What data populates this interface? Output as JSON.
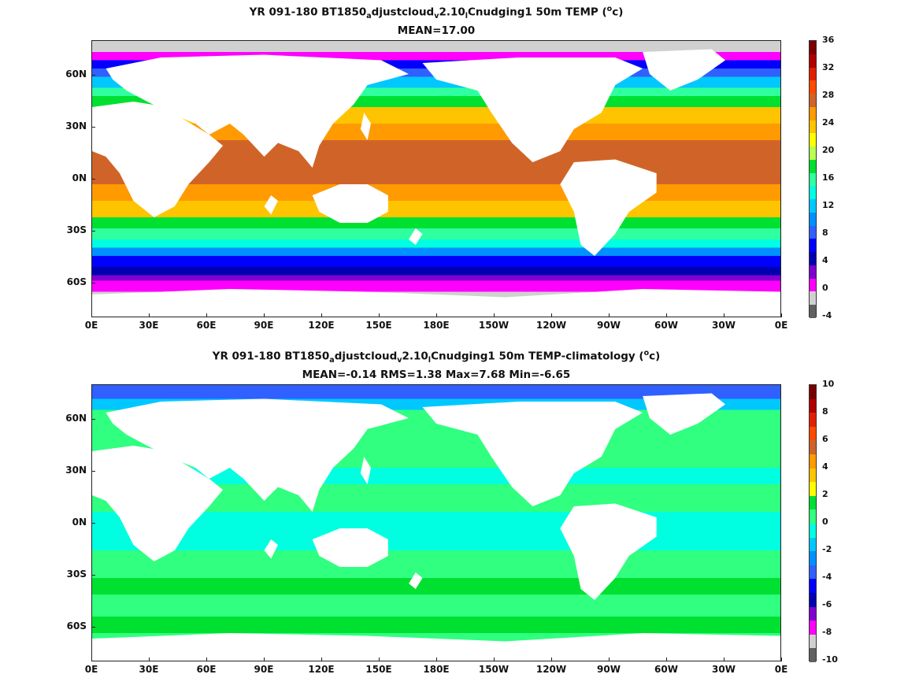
{
  "panels": [
    {
      "title_parts": [
        "YR 091-180 BT1850",
        "a",
        "djustcloud",
        "v",
        "2.10",
        "l",
        "Cnudging1 50m TEMP (",
        "o",
        "c)"
      ],
      "subtitle": "MEAN=17.00",
      "colorbar": {
        "ticks": [
          "36",
          "32",
          "28",
          "24",
          "20",
          "16",
          "12",
          "8",
          "4",
          "0",
          "-4"
        ],
        "colors": [
          "#7a0000",
          "#b00000",
          "#e02000",
          "#ff4a00",
          "#d06428",
          "#ff9a00",
          "#ffc400",
          "#ffff00",
          "#b8ff50",
          "#00e030",
          "#30ffa0",
          "#00ffe0",
          "#00c8ff",
          "#0090ff",
          "#3060ff",
          "#0000ff",
          "#0000b0",
          "#8000d0",
          "#ff00ff",
          "#d0d0d0",
          "#606060"
        ]
      },
      "map": {
        "bands": [
          {
            "color": "#d0d0d0",
            "from": 0.0,
            "to": 0.04
          },
          {
            "color": "#ff00ff",
            "from": 0.04,
            "to": 0.07
          },
          {
            "color": "#0000ff",
            "from": 0.07,
            "to": 0.1
          },
          {
            "color": "#3060ff",
            "from": 0.1,
            "to": 0.13
          },
          {
            "color": "#00c8ff",
            "from": 0.13,
            "to": 0.17
          },
          {
            "color": "#30ffa0",
            "from": 0.17,
            "to": 0.2
          },
          {
            "color": "#00e030",
            "from": 0.2,
            "to": 0.24
          },
          {
            "color": "#ffc400",
            "from": 0.24,
            "to": 0.3
          },
          {
            "color": "#ff9a00",
            "from": 0.3,
            "to": 0.36
          },
          {
            "color": "#d06428",
            "from": 0.36,
            "to": 0.52
          },
          {
            "color": "#ff9a00",
            "from": 0.52,
            "to": 0.58
          },
          {
            "color": "#ffc400",
            "from": 0.58,
            "to": 0.64
          },
          {
            "color": "#00e030",
            "from": 0.64,
            "to": 0.68
          },
          {
            "color": "#30ffa0",
            "from": 0.68,
            "to": 0.72
          },
          {
            "color": "#00ffe0",
            "from": 0.72,
            "to": 0.75
          },
          {
            "color": "#0090ff",
            "from": 0.75,
            "to": 0.78
          },
          {
            "color": "#0000ff",
            "from": 0.78,
            "to": 0.82
          },
          {
            "color": "#0000b0",
            "from": 0.82,
            "to": 0.85
          },
          {
            "color": "#8000d0",
            "from": 0.85,
            "to": 0.87
          },
          {
            "color": "#ff00ff",
            "from": 0.87,
            "to": 0.91
          },
          {
            "color": "#d0d0d0",
            "from": 0.91,
            "to": 1.0
          }
        ]
      }
    },
    {
      "title_parts": [
        "YR 091-180 BT1850",
        "a",
        "djustcloud",
        "v",
        "2.10",
        "l",
        "Cnudging1 50m TEMP-climatology (",
        "o",
        "c)"
      ],
      "subtitle": "MEAN=-0.14   RMS=1.38   Max=7.68   Min=-6.65",
      "colorbar": {
        "ticks": [
          "10",
          "8",
          "6",
          "4",
          "2",
          "0",
          "-2",
          "-4",
          "-6",
          "-8",
          "-10"
        ],
        "colors": [
          "#7a0000",
          "#b00000",
          "#e02000",
          "#ff4a00",
          "#d06428",
          "#ff9a00",
          "#ffc400",
          "#ffff00",
          "#00e030",
          "#30ff80",
          "#00ffe0",
          "#00c8ff",
          "#0090ff",
          "#3060ff",
          "#0000ff",
          "#0000b0",
          "#8000d0",
          "#ff00ff",
          "#d0d0d0",
          "#606060"
        ]
      },
      "map": {
        "bands": [
          {
            "color": "#3060ff",
            "from": 0.0,
            "to": 0.05
          },
          {
            "color": "#00c8ff",
            "from": 0.05,
            "to": 0.09
          },
          {
            "color": "#30ff80",
            "from": 0.09,
            "to": 0.3
          },
          {
            "color": "#00ffe0",
            "from": 0.3,
            "to": 0.36
          },
          {
            "color": "#30ff80",
            "from": 0.36,
            "to": 0.46
          },
          {
            "color": "#00ffe0",
            "from": 0.46,
            "to": 0.6
          },
          {
            "color": "#30ff80",
            "from": 0.6,
            "to": 0.7
          },
          {
            "color": "#00e030",
            "from": 0.7,
            "to": 0.76
          },
          {
            "color": "#30ff80",
            "from": 0.76,
            "to": 0.84
          },
          {
            "color": "#00e030",
            "from": 0.84,
            "to": 0.9
          },
          {
            "color": "#30ff80",
            "from": 0.9,
            "to": 1.0
          }
        ]
      }
    }
  ],
  "axes": {
    "lat_ticks": [
      "60N",
      "30N",
      "0N",
      "30S",
      "60S"
    ],
    "lon_ticks": [
      "0E",
      "30E",
      "60E",
      "90E",
      "120E",
      "150E",
      "180E",
      "150W",
      "120W",
      "90W",
      "60W",
      "30W",
      "0E"
    ]
  },
  "colors": {
    "land": "#ffffff",
    "coast": "#000000"
  }
}
